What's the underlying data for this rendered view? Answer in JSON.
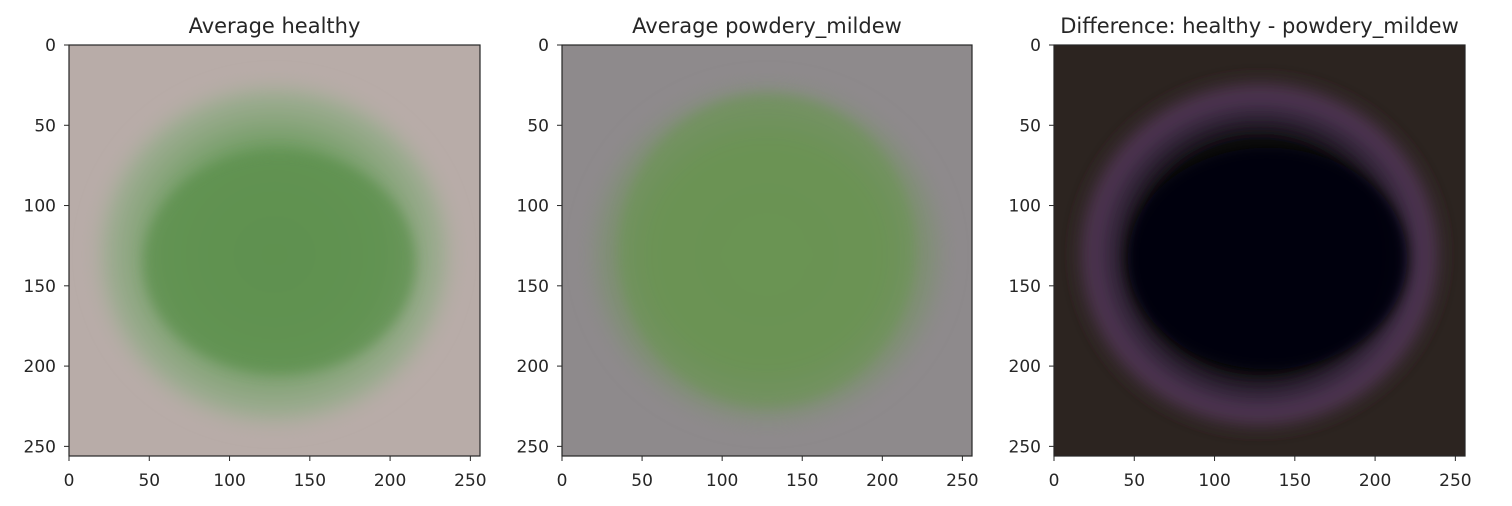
{
  "chart_data": [
    {
      "type": "heatmap",
      "title": "Average healthy",
      "xlim": [
        0,
        256
      ],
      "ylim": [
        256,
        0
      ],
      "xticks": [
        0,
        50,
        100,
        150,
        200,
        250
      ],
      "yticks": [
        0,
        50,
        100,
        150,
        200,
        250
      ],
      "grid": false,
      "background_color": "#b8aca8",
      "leaf_color": "#5e9150"
    },
    {
      "type": "heatmap",
      "title": "Average powdery_mildew",
      "xlim": [
        0,
        256
      ],
      "ylim": [
        256,
        0
      ],
      "xticks": [
        0,
        50,
        100,
        150,
        200,
        250
      ],
      "yticks": [
        0,
        50,
        100,
        150,
        200,
        250
      ],
      "grid": false,
      "background_color": "#8e8a8c",
      "leaf_color": "#6a9452"
    },
    {
      "type": "heatmap",
      "title": "Difference: healthy - powdery_mildew",
      "xlim": [
        0,
        256
      ],
      "ylim": [
        256,
        0
      ],
      "xticks": [
        0,
        50,
        100,
        150,
        200,
        250
      ],
      "yticks": [
        0,
        50,
        100,
        150,
        200,
        250
      ],
      "grid": false,
      "background_color": "#2c2420",
      "leaf_color": "#060607",
      "ring_color": "#5a3a62"
    }
  ]
}
